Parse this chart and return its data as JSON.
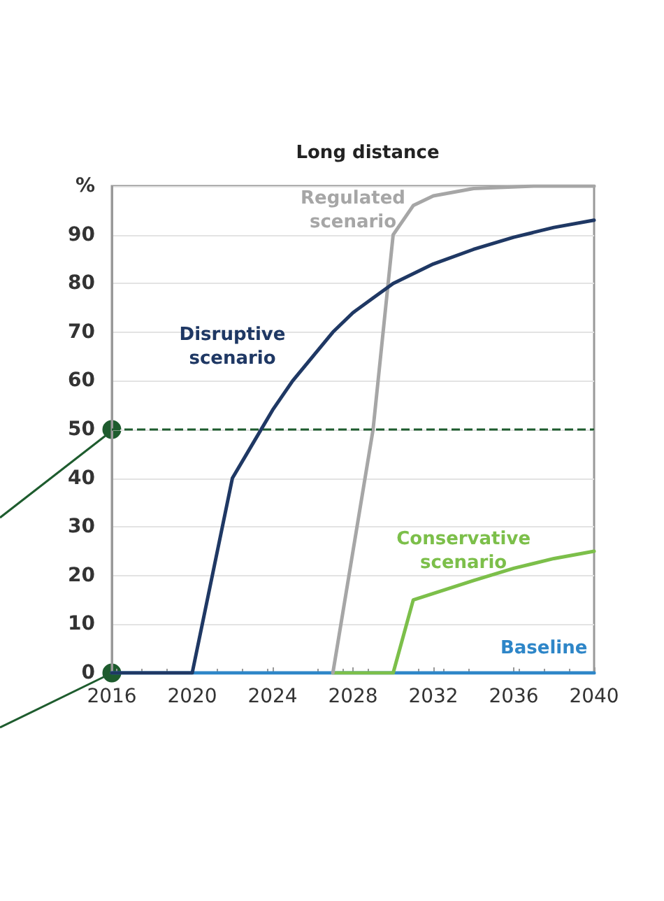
{
  "chart_data": {
    "type": "line",
    "title": "Long distance",
    "xlim": [
      2016,
      2040
    ],
    "xticks": [
      2016,
      2020,
      2024,
      2028,
      2032,
      2036,
      2040
    ],
    "ylim": [
      0,
      100
    ],
    "yticks": [
      0,
      10,
      20,
      30,
      40,
      50,
      60,
      70,
      80,
      90,
      {
        "value": 100,
        "label": "%"
      }
    ],
    "grid": "y",
    "legend": false,
    "marker": "none",
    "line_style": "solid",
    "series": [
      {
        "name": "Baseline",
        "color": "#2e86c8",
        "x": [
          2016,
          2040
        ],
        "values": [
          0,
          0
        ]
      },
      {
        "name": "Conservative scenario",
        "color": "#7cbf4a",
        "x": [
          2027,
          2030,
          2031,
          2034,
          2036,
          2038,
          2040
        ],
        "values": [
          0,
          0,
          15,
          19,
          21.5,
          23.5,
          25
        ]
      },
      {
        "name": "Regulated scenario",
        "color": "#a6a6a6",
        "x": [
          2027,
          2029,
          2030,
          2031,
          2032,
          2034,
          2037,
          2040
        ],
        "values": [
          0,
          50,
          90,
          96,
          98,
          99.5,
          100,
          100
        ]
      },
      {
        "name": "Disruptive scenario",
        "color": "#1f3864",
        "x": [
          2016,
          2020,
          2022,
          2023,
          2024,
          2025,
          2026,
          2027,
          2028,
          2029,
          2030,
          2032,
          2034,
          2036,
          2038,
          2040
        ],
        "values": [
          0,
          0,
          40,
          47,
          54,
          60,
          65,
          70,
          74,
          77,
          80,
          84,
          87,
          89.5,
          91.5,
          93
        ]
      }
    ],
    "ref_lines": [
      {
        "axis": "y",
        "value": 50,
        "color": "#1e5c2e",
        "line_style": "dashed"
      }
    ]
  }
}
